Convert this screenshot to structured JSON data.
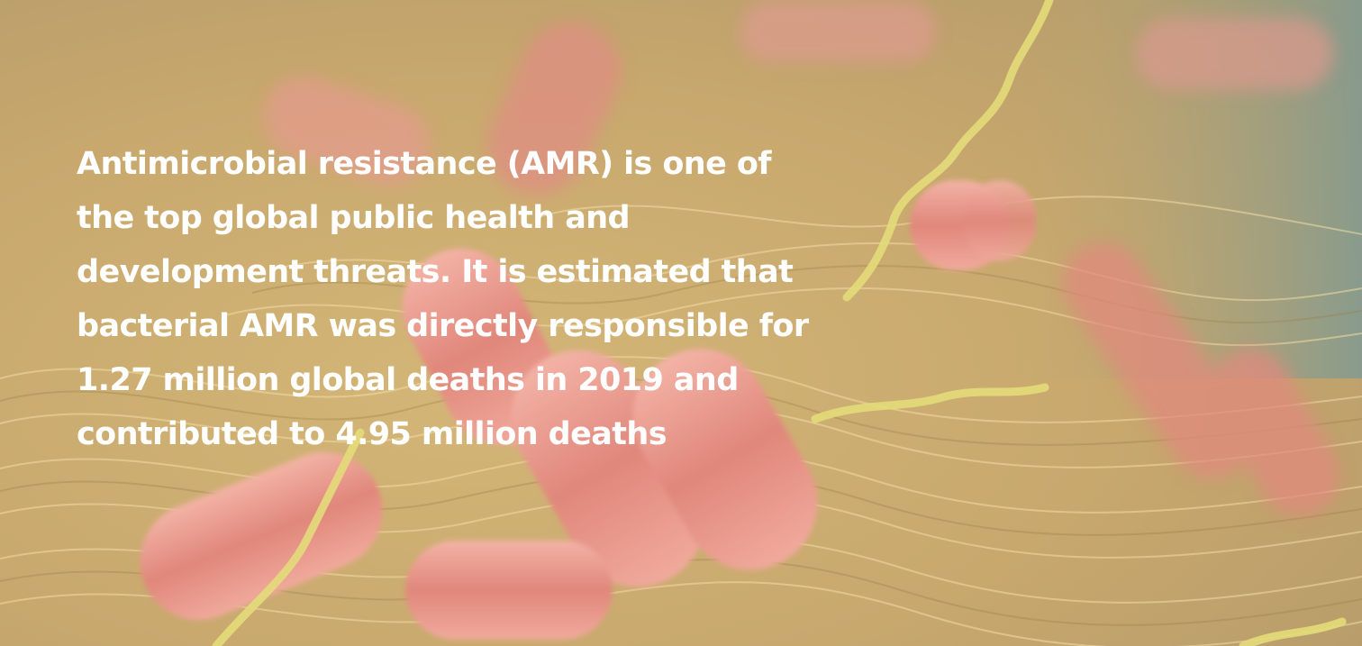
{
  "hero": {
    "headline_lines": [
      "Antimicrobial resistance (AMR) is one of",
      "the top global public health and",
      "development threats. It is estimated that",
      "bacterial AMR was directly responsible for",
      "1.27 million global deaths in 2019 and",
      "contributed to 4.95 million deaths"
    ]
  },
  "colors": {
    "text": "#ffffff",
    "background_tan": "#c9ab6e",
    "bacteria_pink": "#e08a7e",
    "flagella_yellow": "#e3dc7a",
    "corner_teal": "#8aa39a"
  }
}
